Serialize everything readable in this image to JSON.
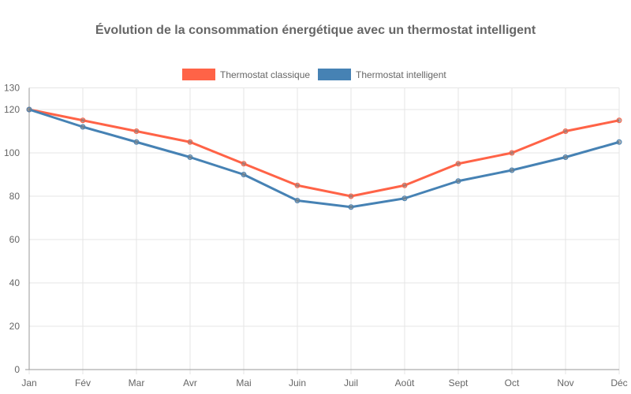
{
  "chart_data": {
    "type": "line",
    "title": "Évolution de la consommation énergétique avec un thermostat intelligent",
    "categories": [
      "Jan",
      "Fév",
      "Mar",
      "Avr",
      "Mai",
      "Juin",
      "Juil",
      "Août",
      "Sept",
      "Oct",
      "Nov",
      "Déc"
    ],
    "series": [
      {
        "name": "Thermostat classique",
        "color": "#ff6347",
        "values": [
          120,
          115,
          110,
          105,
          95,
          85,
          80,
          85,
          95,
          100,
          110,
          115
        ]
      },
      {
        "name": "Thermostat intelligent",
        "color": "#4682b4",
        "values": [
          120,
          112,
          105,
          98,
          90,
          78,
          75,
          79,
          87,
          92,
          98,
          105
        ]
      }
    ],
    "ylim": [
      0,
      130
    ],
    "yticks": [
      0,
      20,
      40,
      60,
      80,
      100,
      120,
      130
    ],
    "grid": true,
    "legend": "top"
  }
}
